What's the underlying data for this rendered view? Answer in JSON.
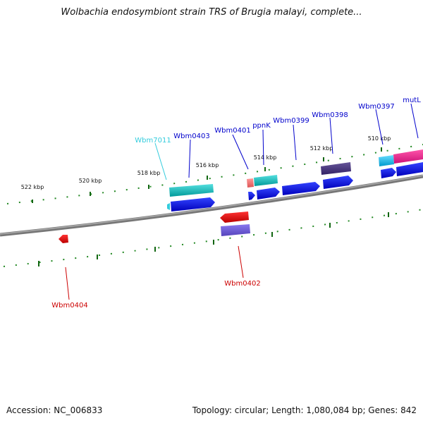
{
  "title": "Wolbachia endosymbiont strain TRS of Brugia malayi, complete...",
  "footer": {
    "accession": "Accession: NC_006833",
    "summary": "Topology: circular; Length: 1,080,084 bp; Genes: 842"
  },
  "ticks": [
    "522 kbp",
    "520 kbp",
    "518 kbp",
    "516 kbp",
    "514 kbp",
    "512 kbp",
    "510 kbp"
  ],
  "genes": [
    {
      "id": "Wbm7011",
      "color": "#33ccdd"
    },
    {
      "id": "Wbm0403",
      "color": "#0000cc"
    },
    {
      "id": "Wbm0401",
      "color": "#0000cc"
    },
    {
      "id": "ppnK",
      "color": "#0000cc"
    },
    {
      "id": "Wbm0399",
      "color": "#0000cc"
    },
    {
      "id": "Wbm0398",
      "color": "#0000cc"
    },
    {
      "id": "Wbm0397",
      "color": "#0000cc"
    },
    {
      "id": "mutL",
      "color": "#0000cc"
    },
    {
      "id": "Wbm0402",
      "color": "#cc0000"
    },
    {
      "id": "Wbm0404",
      "color": "#cc0000"
    }
  ]
}
